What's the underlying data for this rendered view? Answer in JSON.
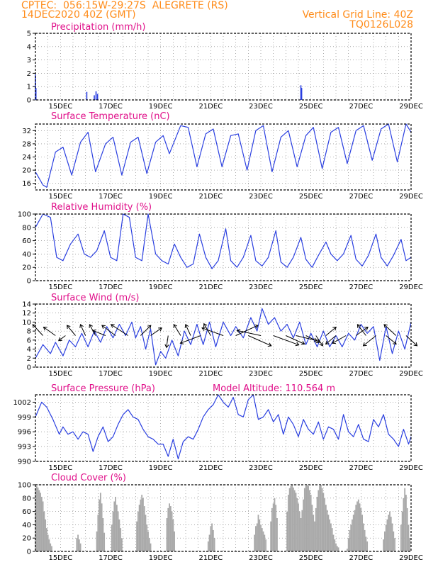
{
  "header": {
    "line1_left": "CPTEC:  056:15W-29:27S  ALEGRETE (RS)",
    "line2_left": "14DEC2020 40Z (GMT)",
    "line1_right": "Vertical Grid Line: 40Z",
    "line2_right": "TQ0126L028"
  },
  "colors": {
    "header": "#ff8c1a",
    "title": "#e0108a",
    "line": "#2a3fe0",
    "cloud": "#a9a9a9",
    "axis": "#000000"
  },
  "x_axis": {
    "start_day": 14,
    "end_day": 29,
    "tick_labels": [
      "15DEC",
      "17DEC",
      "19DEC",
      "21DEC",
      "23DEC",
      "25DEC",
      "27DEC",
      "29DEC"
    ],
    "tick_days": [
      15,
      17,
      19,
      21,
      23,
      25,
      27,
      29
    ]
  },
  "chart_data": [
    {
      "type": "bar",
      "title": "Precipitation (mm/h)",
      "ylim": [
        0,
        5
      ],
      "yticks": [
        "0",
        "1",
        "2",
        "3",
        "4",
        "5"
      ],
      "x": [
        14.0,
        14.02,
        16.05,
        16.35,
        16.42,
        16.48,
        24.6,
        24.63
      ],
      "values": [
        1.9,
        0.9,
        0.6,
        0.35,
        0.65,
        0.45,
        1.1,
        0.9
      ]
    },
    {
      "type": "line",
      "title": "Surface Temperature (nC)",
      "ylim": [
        14,
        34
      ],
      "yticks": [
        "16",
        "20",
        "24",
        "28",
        "32"
      ],
      "x": [
        14.0,
        14.3,
        14.45,
        14.8,
        15.1,
        15.45,
        15.8,
        16.1,
        16.4,
        16.8,
        17.1,
        17.45,
        17.8,
        18.1,
        18.45,
        18.8,
        19.1,
        19.35,
        19.8,
        20.1,
        20.45,
        20.8,
        21.1,
        21.45,
        21.8,
        22.1,
        22.45,
        22.8,
        23.1,
        23.45,
        23.8,
        24.1,
        24.45,
        24.8,
        25.1,
        25.45,
        25.8,
        26.1,
        26.45,
        26.8,
        27.1,
        27.45,
        27.8,
        28.1,
        28.45,
        28.8,
        29.0
      ],
      "values": [
        19.5,
        15.5,
        14.8,
        25.5,
        27.0,
        18.5,
        28.5,
        31.5,
        19.5,
        28.0,
        30.0,
        18.5,
        28.5,
        30.0,
        19.0,
        28.5,
        30.5,
        25.0,
        33.5,
        33.0,
        21.0,
        31.0,
        32.5,
        21.0,
        30.5,
        31.0,
        20.0,
        32.0,
        33.5,
        19.5,
        30.0,
        32.0,
        21.0,
        30.5,
        33.0,
        20.5,
        31.5,
        33.0,
        22.0,
        32.0,
        33.5,
        23.0,
        32.5,
        34.0,
        22.5,
        34.0,
        31.5
      ]
    },
    {
      "type": "line",
      "title": "Relative Humidity (%)",
      "ylim": [
        0,
        100
      ],
      "yticks": [
        "0",
        "20",
        "40",
        "60",
        "80",
        "100"
      ],
      "x": [
        14.0,
        14.3,
        14.6,
        14.85,
        15.1,
        15.4,
        15.7,
        15.95,
        16.2,
        16.45,
        16.75,
        17.0,
        17.25,
        17.5,
        17.75,
        18.0,
        18.25,
        18.5,
        18.8,
        19.05,
        19.3,
        19.55,
        19.8,
        20.05,
        20.3,
        20.55,
        20.8,
        21.05,
        21.3,
        21.6,
        21.8,
        22.05,
        22.3,
        22.6,
        22.8,
        23.05,
        23.3,
        23.6,
        23.8,
        24.05,
        24.3,
        24.6,
        24.8,
        25.05,
        25.3,
        25.6,
        25.8,
        26.05,
        26.3,
        26.6,
        26.8,
        27.05,
        27.3,
        27.6,
        27.8,
        28.05,
        28.3,
        28.6,
        28.8,
        29.0
      ],
      "values": [
        80,
        100,
        95,
        35,
        30,
        55,
        70,
        40,
        35,
        45,
        75,
        35,
        30,
        100,
        95,
        35,
        30,
        100,
        40,
        30,
        25,
        55,
        35,
        20,
        25,
        70,
        35,
        18,
        30,
        78,
        30,
        20,
        35,
        68,
        30,
        22,
        35,
        75,
        28,
        20,
        35,
        65,
        32,
        20,
        38,
        58,
        40,
        30,
        40,
        68,
        32,
        22,
        38,
        70,
        35,
        22,
        38,
        62,
        30,
        35
      ]
    },
    {
      "type": "line",
      "title": "Surface Wind (m/s)",
      "ylim": [
        0,
        14
      ],
      "yticks": [
        "0",
        "2",
        "4",
        "6",
        "8",
        "10",
        "12",
        "14"
      ],
      "x": [
        14.0,
        14.3,
        14.6,
        14.8,
        15.1,
        15.35,
        15.6,
        15.85,
        16.1,
        16.35,
        16.6,
        16.85,
        17.1,
        17.35,
        17.6,
        17.85,
        18.0,
        18.2,
        18.4,
        18.6,
        18.8,
        19.0,
        19.2,
        19.45,
        19.7,
        19.95,
        20.2,
        20.45,
        20.7,
        20.95,
        21.2,
        21.5,
        21.8,
        22.0,
        22.3,
        22.6,
        22.85,
        23.05,
        23.3,
        23.55,
        23.8,
        24.05,
        24.3,
        24.55,
        24.8,
        25.0,
        25.25,
        25.5,
        25.75,
        26.0,
        26.25,
        26.5,
        26.75,
        27.0,
        27.25,
        27.5,
        27.75,
        28.0,
        28.25,
        28.5,
        28.75,
        29.0
      ],
      "values": [
        2.0,
        5.0,
        3.0,
        5.5,
        2.5,
        6.0,
        4.5,
        7.5,
        4.5,
        8.0,
        5.5,
        9.0,
        6.5,
        9.5,
        7.0,
        10.0,
        6.5,
        9.0,
        4.0,
        8.5,
        0.5,
        3.5,
        2.0,
        6.0,
        2.5,
        8.0,
        5.0,
        9.5,
        5.0,
        10.0,
        4.5,
        10.0,
        7.0,
        9.0,
        6.5,
        11.0,
        8.0,
        13.0,
        9.5,
        11.0,
        8.0,
        9.5,
        6.5,
        10.0,
        5.0,
        7.5,
        4.5,
        8.0,
        4.5,
        7.0,
        4.5,
        7.5,
        6.0,
        9.5,
        7.5,
        9.0,
        1.5,
        9.0,
        3.0,
        8.0,
        4.0,
        10.0
      ]
    },
    {
      "type": "line",
      "title": "Surface Pressure (hPa)",
      "subtitle": "Model Altitude: 110.564 m",
      "ylim": [
        990,
        1003.5
      ],
      "yticks": [
        "990",
        "993",
        "996",
        "999",
        "1002"
      ],
      "x": [
        14.0,
        14.25,
        14.45,
        14.7,
        14.95,
        15.1,
        15.3,
        15.5,
        15.7,
        15.9,
        16.1,
        16.3,
        16.5,
        16.7,
        16.9,
        17.1,
        17.3,
        17.5,
        17.7,
        17.9,
        18.1,
        18.3,
        18.5,
        18.7,
        18.9,
        19.1,
        19.3,
        19.5,
        19.7,
        19.9,
        20.1,
        20.3,
        20.5,
        20.7,
        20.9,
        21.1,
        21.3,
        21.5,
        21.7,
        21.9,
        22.1,
        22.3,
        22.5,
        22.7,
        22.9,
        23.1,
        23.3,
        23.5,
        23.7,
        23.9,
        24.1,
        24.3,
        24.5,
        24.7,
        24.9,
        25.1,
        25.3,
        25.5,
        25.7,
        25.9,
        26.1,
        26.3,
        26.5,
        26.7,
        26.9,
        27.1,
        27.3,
        27.5,
        27.7,
        27.9,
        28.1,
        28.3,
        28.5,
        28.7,
        28.9,
        29.0
      ],
      "values": [
        999.0,
        1002.0,
        1001.0,
        998.5,
        995.5,
        997.0,
        995.5,
        996.0,
        994.5,
        996.0,
        995.5,
        992.0,
        995.0,
        997.0,
        994.0,
        995.0,
        997.5,
        999.5,
        1000.5,
        999.0,
        998.5,
        996.5,
        995.0,
        994.5,
        993.5,
        993.5,
        991.0,
        994.5,
        990.5,
        994.0,
        995.0,
        994.5,
        996.5,
        999.0,
        1000.5,
        1001.5,
        1003.5,
        1002.0,
        1001.0,
        1003.0,
        999.5,
        999.0,
        1002.5,
        1003.5,
        998.5,
        999.0,
        1000.5,
        998.0,
        999.5,
        995.5,
        999.0,
        997.5,
        995.0,
        998.5,
        996.5,
        995.5,
        998.0,
        994.5,
        997.0,
        996.5,
        994.5,
        999.5,
        996.0,
        995.0,
        997.5,
        994.5,
        994.0,
        998.5,
        997.0,
        999.5,
        995.5,
        994.5,
        993.0,
        996.5,
        993.5,
        995.0
      ]
    },
    {
      "type": "bar",
      "title": "Cloud Cover (%)",
      "ylim": [
        0,
        100
      ],
      "yticks": [
        "0",
        "20",
        "40",
        "60",
        "80",
        "100"
      ],
      "x": [
        14.0,
        14.05,
        14.1,
        14.15,
        14.2,
        14.25,
        14.3,
        14.35,
        14.4,
        14.45,
        14.5,
        14.55,
        14.6,
        14.65,
        15.65,
        15.7,
        15.75,
        15.8,
        16.45,
        16.5,
        16.55,
        16.6,
        16.65,
        16.7,
        16.75,
        17.05,
        17.1,
        17.15,
        17.2,
        17.25,
        17.3,
        17.35,
        17.4,
        17.45,
        18.05,
        18.1,
        18.15,
        18.2,
        18.25,
        18.3,
        18.35,
        18.4,
        18.45,
        18.5,
        18.55,
        18.6,
        19.25,
        19.3,
        19.35,
        19.4,
        19.45,
        19.5,
        19.55,
        20.9,
        20.95,
        21.0,
        21.05,
        21.1,
        21.15,
        22.75,
        22.8,
        22.85,
        22.9,
        22.95,
        23.0,
        23.05,
        23.1,
        23.15,
        23.2,
        23.4,
        23.45,
        23.5,
        23.55,
        23.6,
        23.65,
        24.05,
        24.1,
        24.15,
        24.2,
        24.25,
        24.3,
        24.35,
        24.4,
        24.45,
        24.5,
        24.55,
        24.6,
        24.65,
        24.7,
        24.75,
        24.8,
        24.85,
        24.9,
        24.95,
        25.0,
        25.05,
        25.1,
        25.15,
        25.2,
        25.25,
        25.3,
        25.35,
        25.4,
        25.45,
        25.5,
        25.55,
        25.6,
        25.65,
        25.7,
        25.75,
        25.8,
        25.85,
        25.9,
        25.95,
        26.0,
        26.05,
        26.1,
        26.45,
        26.5,
        26.55,
        26.6,
        26.65,
        26.7,
        26.75,
        26.8,
        26.85,
        26.9,
        26.95,
        27.0,
        27.05,
        27.1,
        27.15,
        27.2,
        27.25,
        27.9,
        27.95,
        28.0,
        28.05,
        28.1,
        28.15,
        28.2,
        28.25,
        28.3,
        28.35,
        28.6,
        28.65,
        28.7,
        28.75,
        28.8,
        28.85,
        28.9,
        28.95
      ],
      "values": [
        95,
        98,
        96,
        92,
        88,
        82,
        75,
        60,
        48,
        35,
        25,
        18,
        12,
        8,
        20,
        25,
        18,
        12,
        30,
        55,
        78,
        88,
        72,
        50,
        28,
        40,
        60,
        75,
        82,
        70,
        60,
        48,
        35,
        20,
        45,
        60,
        70,
        78,
        85,
        80,
        68,
        55,
        40,
        30,
        20,
        12,
        50,
        65,
        72,
        68,
        60,
        48,
        30,
        15,
        25,
        38,
        42,
        32,
        20,
        25,
        38,
        42,
        55,
        48,
        40,
        35,
        30,
        25,
        18,
        45,
        65,
        72,
        80,
        70,
        50,
        60,
        85,
        95,
        98,
        100,
        96,
        92,
        88,
        80,
        72,
        60,
        50,
        62,
        78,
        95,
        98,
        100,
        98,
        92,
        85,
        70,
        55,
        45,
        65,
        82,
        92,
        98,
        100,
        95,
        88,
        80,
        70,
        62,
        55,
        48,
        42,
        35,
        25,
        18,
        12,
        8,
        6,
        4,
        20,
        32,
        40,
        48,
        55,
        62,
        70,
        75,
        78,
        72,
        65,
        55,
        42,
        32,
        22,
        15,
        18,
        30,
        40,
        48,
        55,
        60,
        52,
        42,
        30,
        20,
        40,
        60,
        80,
        95,
        85,
        65,
        40,
        20
      ]
    }
  ],
  "wind_vectors": {
    "days": [
      14.3,
      14.8,
      15.2,
      15.6,
      16.0,
      16.4,
      16.8,
      17.2,
      17.7,
      18.2,
      18.6,
      19.3,
      19.8,
      20.2,
      20.6,
      21.0,
      21.5,
      22.0,
      22.5,
      23.0,
      23.5,
      24.0,
      24.4,
      24.8,
      25.2,
      25.6,
      26.0,
      26.4,
      26.8,
      27.2,
      27.6,
      28.0,
      28.4,
      28.8
    ],
    "u": [
      -1.2,
      -1.4,
      -0.8,
      -1.0,
      -0.6,
      -0.7,
      -1.5,
      -1.6,
      -2.0,
      1.2,
      1.3,
      -0.2,
      -0.8,
      -0.6,
      -2.4,
      -0.8,
      -2.5,
      2.6,
      2.7,
      -2.8,
      3.0,
      2.2,
      2.5,
      1.6,
      0.8,
      1.2,
      -1.2,
      -1.6,
      1.4,
      -1.0,
      -1.5,
      1.2,
      -1.4,
      1.3
    ],
    "v": [
      1.3,
      1.0,
      -0.6,
      1.2,
      1.3,
      1.3,
      0.6,
      1.2,
      1.3,
      1.2,
      0.9,
      -1.4,
      1.3,
      1.3,
      -0.9,
      1.4,
      0.9,
      1.2,
      -1.2,
      0.6,
      -1.1,
      -1.0,
      -0.6,
      -0.8,
      -1.2,
      1.0,
      -1.0,
      -0.9,
      1.0,
      1.3,
      -1.2,
      -1.0,
      1.3,
      -1.2
    ]
  }
}
